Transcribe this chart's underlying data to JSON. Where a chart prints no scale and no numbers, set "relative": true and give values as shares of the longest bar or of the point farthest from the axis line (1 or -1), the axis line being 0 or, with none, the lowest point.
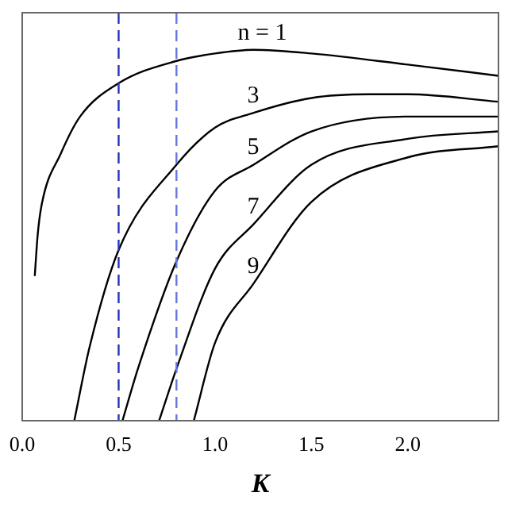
{
  "chart_data": {
    "type": "line",
    "xlabel": "K",
    "relative": true,
    "xlim": [
      0,
      2.47
    ],
    "xticks": [
      {
        "value": 0,
        "label": "0.0"
      },
      0.5,
      {
        "value": 1,
        "label": "1.0"
      },
      1.5,
      {
        "value": 2,
        "label": "2.0"
      }
    ],
    "grid": false,
    "legend": false,
    "marker": "none",
    "line_style": "solid",
    "series": [
      {
        "name": "n = 1",
        "color": "#000000",
        "x": [
          0.065,
          0.08,
          0.1,
          0.2,
          0.3,
          0.5,
          0.8,
          1.0,
          1.2,
          1.5,
          2.0,
          2.47
        ],
        "values": [
          0.39,
          0.5,
          0.58,
          0.72,
          0.82,
          0.91,
          0.97,
          0.99,
          1.0,
          0.99,
          0.96,
          0.93
        ]
      },
      {
        "name": "3",
        "color": "#000000",
        "x": [
          0.27,
          0.35,
          0.5,
          0.8,
          1.0,
          1.2,
          1.5,
          1.8,
          2.0,
          2.47
        ],
        "values": [
          0,
          0.2,
          0.46,
          0.69,
          0.79,
          0.83,
          0.87,
          0.88,
          0.88,
          0.86
        ]
      },
      {
        "name": "5",
        "color": "#000000",
        "x": [
          0.52,
          0.6,
          0.8,
          1.0,
          1.2,
          1.5,
          2.0,
          2.47
        ],
        "values": [
          0,
          0.14,
          0.43,
          0.62,
          0.69,
          0.78,
          0.82,
          0.82
        ]
      },
      {
        "name": "7",
        "color": "#000000",
        "x": [
          0.71,
          0.8,
          1.0,
          1.2,
          1.5,
          2.0,
          2.47
        ],
        "values": [
          0,
          0.14,
          0.41,
          0.53,
          0.69,
          0.76,
          0.78
        ]
      },
      {
        "name": "9",
        "color": "#000000",
        "x": [
          0.89,
          1.0,
          1.2,
          1.5,
          2.0,
          2.47
        ],
        "values": [
          0,
          0.21,
          0.37,
          0.59,
          0.71,
          0.74
        ]
      }
    ],
    "ref_lines": [
      {
        "axis": "x",
        "value": 0.5,
        "color": "#2233bb",
        "line_style": "dashed"
      },
      {
        "axis": "x",
        "value": 0.8,
        "color": "#6677dd",
        "line_style": "dashed"
      }
    ]
  }
}
